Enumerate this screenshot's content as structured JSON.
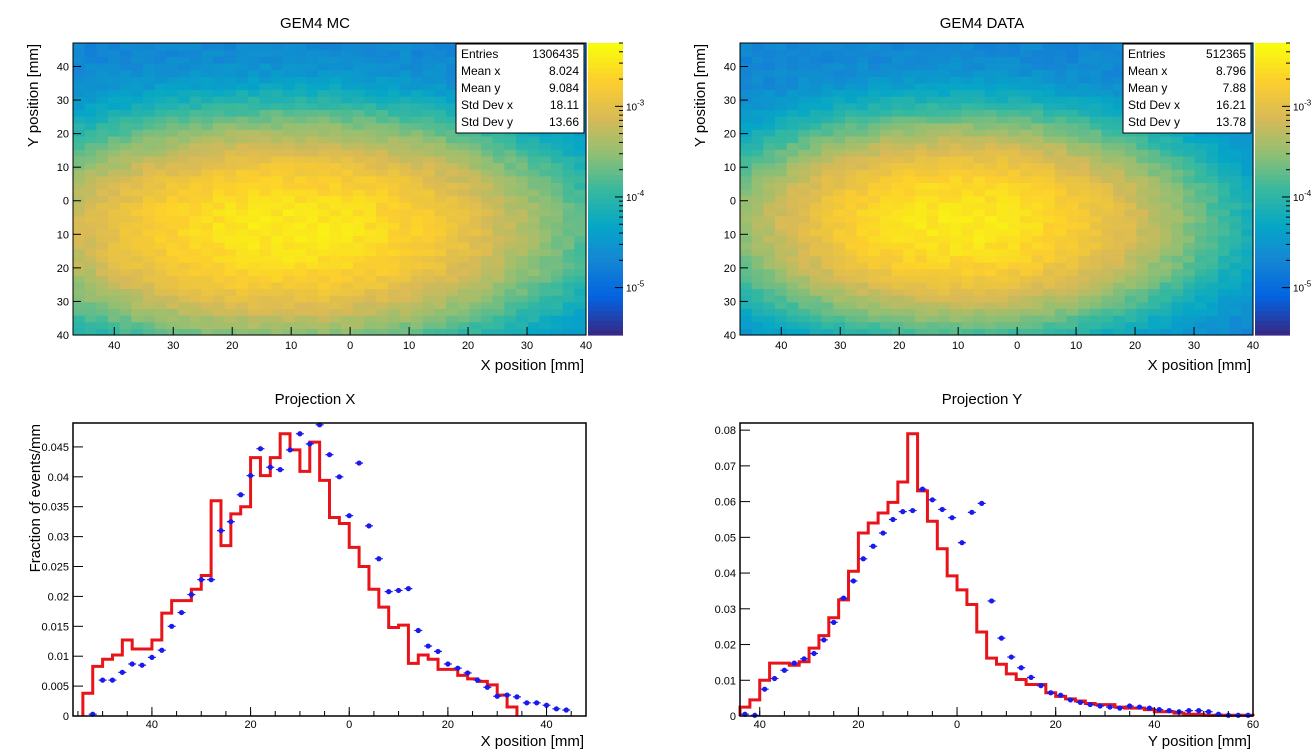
{
  "colors": {
    "mc_line": "#e8141a",
    "data_marker": "#1a1aee",
    "palette": [
      "#352a87",
      "#0363e1",
      "#1485d4",
      "#06a7c6",
      "#38b99e",
      "#92bf73",
      "#d9ba56",
      "#fcce2e",
      "#f9fb0e"
    ]
  },
  "chart_data": [
    {
      "type": "heatmap",
      "title": "GEM4 MC",
      "xlabel": "X position [mm]",
      "ylabel": "Y position [mm]",
      "xlim": [
        -47,
        40
      ],
      "ylim": [
        -40,
        47
      ],
      "x_ticks": [
        "40",
        "30",
        "20",
        "10",
        "0",
        "10",
        "20",
        "30",
        "40"
      ],
      "y_ticks": [
        "40",
        "30",
        "20",
        "10",
        "0",
        "10",
        "20",
        "30",
        "40"
      ],
      "z_scale": "log",
      "zlim": [
        3e-06,
        0.005
      ],
      "z_ticks": [
        "10-3",
        "10-4",
        "10-5"
      ],
      "peak": {
        "x": -10,
        "y": -8,
        "sx": 20,
        "sy": 14
      },
      "stats": {
        "rows": [
          {
            "label": "Entries",
            "value": "1306435"
          },
          {
            "label": "Mean x",
            "value": "8.024"
          },
          {
            "label": "Mean y",
            "value": "9.084"
          },
          {
            "label": "Std Dev x",
            "value": "18.11"
          },
          {
            "label": "Std Dev y",
            "value": "13.66"
          }
        ]
      }
    },
    {
      "type": "heatmap",
      "title": "GEM4 DATA",
      "xlabel": "X position [mm]",
      "ylabel": "Y position [mm]",
      "xlim": [
        -47,
        40
      ],
      "ylim": [
        -40,
        47
      ],
      "x_ticks": [
        "40",
        "30",
        "20",
        "10",
        "0",
        "10",
        "20",
        "30",
        "40"
      ],
      "y_ticks": [
        "40",
        "30",
        "20",
        "10",
        "0",
        "10",
        "20",
        "30",
        "40"
      ],
      "z_scale": "log",
      "zlim": [
        3e-06,
        0.005
      ],
      "z_ticks": [
        "10-3",
        "10-4",
        "10-5"
      ],
      "peak": {
        "x": -9,
        "y": -6,
        "sx": 17,
        "sy": 13
      },
      "stats": {
        "rows": [
          {
            "label": "Entries",
            "value": "512365"
          },
          {
            "label": "Mean x",
            "value": "8.796"
          },
          {
            "label": "Mean y",
            "value": "7.88"
          },
          {
            "label": "Std Dev x",
            "value": "16.21"
          },
          {
            "label": "Std Dev y",
            "value": "13.78"
          }
        ]
      }
    },
    {
      "type": "line",
      "title": "Projection X",
      "xlabel": "X position [mm]",
      "ylabel": "Fraction of events/mm",
      "xlim": [
        -56,
        48
      ],
      "ylim": [
        0,
        0.049
      ],
      "x_tick_values": [
        -40,
        -20,
        0,
        20,
        40
      ],
      "x_ticks": [
        "40",
        "20",
        "0",
        "20",
        "40"
      ],
      "y_tick_values": [
        0,
        0.005,
        0.01,
        0.015,
        0.02,
        0.025,
        0.03,
        0.035,
        0.04,
        0.045
      ],
      "y_ticks": [
        "0",
        "0.005",
        "0.01",
        "0.015",
        "0.02",
        "0.025",
        "0.03",
        "0.035",
        "0.04",
        "0.045"
      ],
      "bin_width": 2,
      "bin_start": -54,
      "mc_values": [
        0.0038,
        0.0083,
        0.0095,
        0.0102,
        0.0127,
        0.0112,
        0.0112,
        0.0127,
        0.0172,
        0.0193,
        0.0193,
        0.0212,
        0.0235,
        0.036,
        0.0285,
        0.0338,
        0.035,
        0.0432,
        0.0402,
        0.0432,
        0.0472,
        0.0445,
        0.0409,
        0.0458,
        0.0394,
        0.0332,
        0.0322,
        0.0282,
        0.025,
        0.0212,
        0.0182,
        0.0148,
        0.0152,
        0.0088,
        0.0102,
        0.0095,
        0.0078,
        0.0078,
        0.0068,
        0.0062,
        0.0058,
        0.0052,
        0.0035,
        0.0015
      ],
      "data_points": {
        "x": [
          -52,
          -50,
          -48,
          -46,
          -44,
          -42,
          -40,
          -38,
          -36,
          -34,
          -32,
          -30,
          -28,
          -26,
          -24,
          -22,
          -20,
          -18,
          -16,
          -14,
          -12,
          -10,
          -8,
          -6,
          -4,
          -2,
          0,
          2,
          4,
          6,
          8,
          10,
          12,
          14,
          16,
          18,
          20,
          22,
          24,
          26,
          28,
          30,
          32,
          34,
          36,
          38,
          40,
          42,
          44
        ],
        "y": [
          0.0003,
          0.006,
          0.006,
          0.0073,
          0.0087,
          0.0085,
          0.0098,
          0.011,
          0.015,
          0.0173,
          0.0203,
          0.0228,
          0.0228,
          0.031,
          0.0325,
          0.037,
          0.0402,
          0.0447,
          0.0416,
          0.0412,
          0.0445,
          0.0472,
          0.0455,
          0.0487,
          0.0437,
          0.04,
          0.0335,
          0.0423,
          0.0318,
          0.0263,
          0.0208,
          0.021,
          0.0213,
          0.0143,
          0.0117,
          0.0108,
          0.0087,
          0.008,
          0.0072,
          0.006,
          0.0048,
          0.0033,
          0.0035,
          0.0032,
          0.0022,
          0.0022,
          0.0018,
          0.0012,
          0.001
        ]
      }
    },
    {
      "type": "line",
      "title": "Projection Y",
      "xlabel": "Y position [mm]",
      "ylabel": "",
      "xlim": [
        -44,
        60
      ],
      "ylim": [
        0,
        0.082
      ],
      "x_tick_values": [
        -40,
        -20,
        0,
        20,
        40,
        60
      ],
      "x_ticks": [
        "40",
        "20",
        "0",
        "20",
        "40",
        "60"
      ],
      "y_tick_values": [
        0,
        0.01,
        0.02,
        0.03,
        0.04,
        0.05,
        0.06,
        0.07,
        0.08
      ],
      "y_ticks": [
        "0",
        "0.01",
        "0.02",
        "0.03",
        "0.04",
        "0.05",
        "0.06",
        "0.07",
        "0.08"
      ],
      "bin_width": 2,
      "bin_start": -44,
      "mc_values": [
        0.0025,
        0.0045,
        0.01,
        0.0148,
        0.0148,
        0.0142,
        0.0152,
        0.019,
        0.0225,
        0.0275,
        0.0325,
        0.0405,
        0.0512,
        0.054,
        0.0568,
        0.0598,
        0.0655,
        0.079,
        0.063,
        0.0545,
        0.0468,
        0.0392,
        0.0353,
        0.0312,
        0.0235,
        0.0162,
        0.0145,
        0.0118,
        0.0102,
        0.0088,
        0.0088,
        0.0065,
        0.0055,
        0.0048,
        0.0042,
        0.0035,
        0.0032,
        0.0032,
        0.0025,
        0.0022,
        0.0022,
        0.0018,
        0.0012,
        0.0012,
        0.0008,
        0.0005,
        0.0005,
        0.0002,
        0.0002,
        0.0002,
        0.0002,
        0.0002
      ],
      "data_points": {
        "x": [
          -43,
          -41,
          -39,
          -37,
          -35,
          -33,
          -31,
          -29,
          -27,
          -25,
          -23,
          -21,
          -19,
          -17,
          -15,
          -13,
          -11,
          -9,
          -7,
          -5,
          -3,
          -1,
          1,
          3,
          5,
          7,
          9,
          11,
          13,
          15,
          17,
          19,
          21,
          23,
          25,
          27,
          29,
          31,
          33,
          35,
          37,
          39,
          41,
          43,
          45,
          47,
          49,
          51,
          53,
          55,
          57,
          59
        ],
        "y": [
          0.0005,
          0.0002,
          0.0075,
          0.0105,
          0.0128,
          0.0148,
          0.016,
          0.0175,
          0.0213,
          0.0262,
          0.033,
          0.0378,
          0.044,
          0.0475,
          0.0512,
          0.055,
          0.0572,
          0.0575,
          0.0635,
          0.0605,
          0.0578,
          0.0555,
          0.0485,
          0.057,
          0.0595,
          0.0322,
          0.0218,
          0.0165,
          0.0135,
          0.0108,
          0.0085,
          0.0065,
          0.0058,
          0.0045,
          0.0038,
          0.0032,
          0.0028,
          0.0025,
          0.0022,
          0.0028,
          0.0025,
          0.0022,
          0.0018,
          0.0015,
          0.0012,
          0.0015,
          0.0015,
          0.0012,
          0.0005,
          0.0002,
          0.0002,
          0.0002
        ]
      }
    }
  ]
}
